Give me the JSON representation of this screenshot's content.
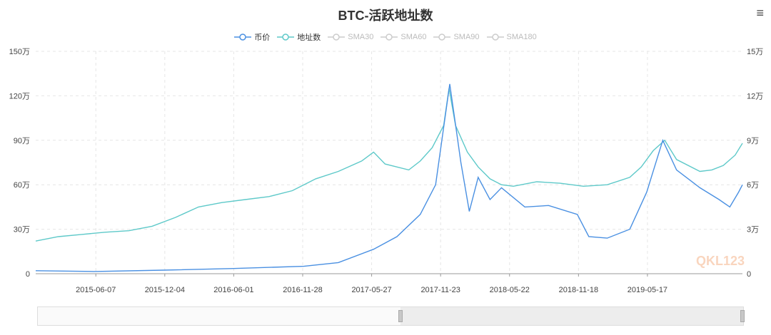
{
  "title": "BTC-活跃地址数",
  "menu_icon": "hamburger-menu-icon",
  "legend": [
    {
      "name": "币价",
      "color": "#4a90e2",
      "active": true
    },
    {
      "name": "地址数",
      "color": "#5ec9c9",
      "active": true
    },
    {
      "name": "SMA30",
      "color": "#cccccc",
      "active": false
    },
    {
      "name": "SMA60",
      "color": "#cccccc",
      "active": false
    },
    {
      "name": "SMA90",
      "color": "#cccccc",
      "active": false
    },
    {
      "name": "SMA180",
      "color": "#cccccc",
      "active": false
    }
  ],
  "watermark": "QKL123",
  "chart_data": {
    "type": "line",
    "x_labels": [
      "2015-06-07",
      "2015-12-04",
      "2016-06-01",
      "2016-11-28",
      "2017-05-27",
      "2017-11-23",
      "2018-05-22",
      "2018-11-18",
      "2019-05-17"
    ],
    "x_range": [
      "2015-01-01",
      "2020-01-20"
    ],
    "y_left": {
      "ticks": [
        "0",
        "30万",
        "60万",
        "90万",
        "120万",
        "150万"
      ],
      "ylim": [
        0,
        1500000
      ]
    },
    "y_right": {
      "ticks": [
        "0",
        "3万",
        "6万",
        "9万",
        "12万",
        "15万"
      ],
      "ylim": [
        0,
        150000
      ]
    },
    "grid": true,
    "legend_position": "top-center",
    "series": [
      {
        "name": "地址数",
        "axis": "left",
        "color": "#5ec9c9",
        "points": [
          [
            "2015-01-01",
            220000
          ],
          [
            "2015-03-01",
            250000
          ],
          [
            "2015-05-01",
            265000
          ],
          [
            "2015-07-01",
            280000
          ],
          [
            "2015-09-01",
            290000
          ],
          [
            "2015-11-01",
            320000
          ],
          [
            "2016-01-01",
            380000
          ],
          [
            "2016-03-01",
            450000
          ],
          [
            "2016-05-01",
            480000
          ],
          [
            "2016-07-01",
            500000
          ],
          [
            "2016-09-01",
            520000
          ],
          [
            "2016-11-01",
            560000
          ],
          [
            "2017-01-01",
            640000
          ],
          [
            "2017-03-01",
            690000
          ],
          [
            "2017-05-01",
            760000
          ],
          [
            "2017-06-01",
            820000
          ],
          [
            "2017-07-01",
            740000
          ],
          [
            "2017-09-01",
            700000
          ],
          [
            "2017-10-01",
            760000
          ],
          [
            "2017-11-01",
            850000
          ],
          [
            "2017-12-01",
            1000000
          ],
          [
            "2017-12-15",
            1250000
          ],
          [
            "2018-01-01",
            1000000
          ],
          [
            "2018-02-01",
            820000
          ],
          [
            "2018-03-01",
            720000
          ],
          [
            "2018-04-01",
            640000
          ],
          [
            "2018-05-01",
            600000
          ],
          [
            "2018-06-01",
            590000
          ],
          [
            "2018-08-01",
            620000
          ],
          [
            "2018-10-01",
            610000
          ],
          [
            "2018-12-01",
            590000
          ],
          [
            "2019-02-01",
            600000
          ],
          [
            "2019-04-01",
            650000
          ],
          [
            "2019-05-01",
            720000
          ],
          [
            "2019-06-01",
            830000
          ],
          [
            "2019-07-01",
            900000
          ],
          [
            "2019-08-01",
            770000
          ],
          [
            "2019-10-01",
            690000
          ],
          [
            "2019-11-01",
            700000
          ],
          [
            "2019-12-01",
            730000
          ],
          [
            "2020-01-01",
            800000
          ],
          [
            "2020-01-20",
            880000
          ]
        ]
      },
      {
        "name": "币价",
        "axis": "right",
        "color": "#4a90e2",
        "points": [
          [
            "2015-01-01",
            2000
          ],
          [
            "2015-06-01",
            1500
          ],
          [
            "2015-12-01",
            2400
          ],
          [
            "2016-06-01",
            3500
          ],
          [
            "2016-12-01",
            5000
          ],
          [
            "2017-03-01",
            7500
          ],
          [
            "2017-06-01",
            16500
          ],
          [
            "2017-08-01",
            25000
          ],
          [
            "2017-10-01",
            40000
          ],
          [
            "2017-11-10",
            60000
          ],
          [
            "2017-12-17",
            128000
          ],
          [
            "2018-01-15",
            75000
          ],
          [
            "2018-02-06",
            42000
          ],
          [
            "2018-03-01",
            65000
          ],
          [
            "2018-04-01",
            50000
          ],
          [
            "2018-05-01",
            58000
          ],
          [
            "2018-07-01",
            45000
          ],
          [
            "2018-09-01",
            46000
          ],
          [
            "2018-11-15",
            40000
          ],
          [
            "2018-12-15",
            25000
          ],
          [
            "2019-02-01",
            24000
          ],
          [
            "2019-04-01",
            30000
          ],
          [
            "2019-05-15",
            55000
          ],
          [
            "2019-06-26",
            90000
          ],
          [
            "2019-08-01",
            70000
          ],
          [
            "2019-10-01",
            58000
          ],
          [
            "2019-11-20",
            50000
          ],
          [
            "2019-12-18",
            45000
          ],
          [
            "2020-01-10",
            55000
          ],
          [
            "2020-01-20",
            60000
          ]
        ]
      }
    ]
  }
}
